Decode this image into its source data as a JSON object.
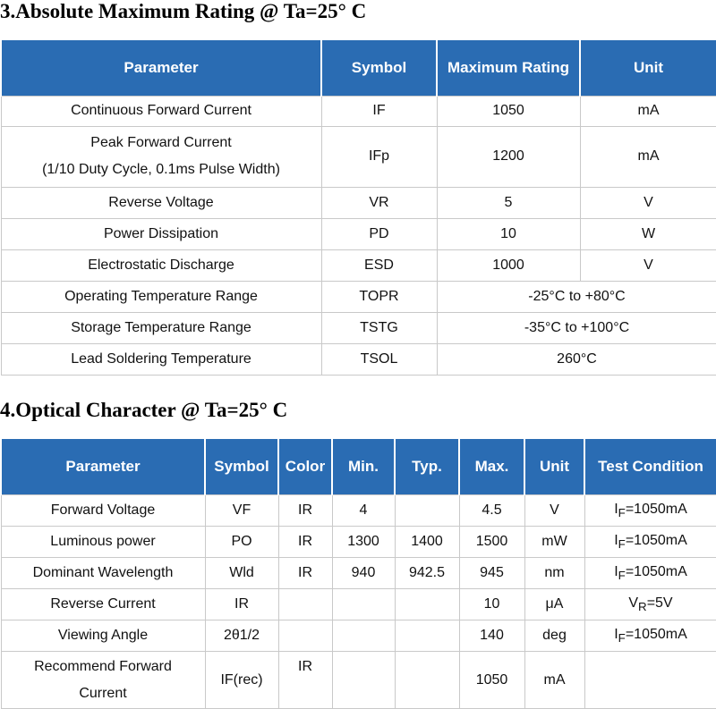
{
  "sections": [
    {
      "title": "3.Absolute Maximum Rating @ Ta=25° C",
      "header": [
        "Parameter",
        "Symbol",
        "Maximum Rating",
        "Unit"
      ],
      "rows": [
        [
          [
            "Continuous Forward Current"
          ],
          "IF",
          "1050",
          "mA"
        ],
        [
          [
            "Peak Forward Current",
            "(1/10 Duty Cycle, 0.1ms Pulse Width)"
          ],
          "IFp",
          "1200",
          "mA"
        ],
        [
          [
            "Reverse Voltage"
          ],
          "VR",
          "5",
          "V"
        ],
        [
          [
            "Power Dissipation"
          ],
          "PD",
          "10",
          "W"
        ],
        [
          [
            "Electrostatic Discharge"
          ],
          "ESD",
          "1000",
          "V"
        ],
        [
          [
            "Operating Temperature Range"
          ],
          "TOPR",
          "-25°C to +80°C"
        ],
        [
          [
            "Storage Temperature Range"
          ],
          "TSTG",
          "-35°C to +100°C"
        ],
        [
          [
            "Lead Soldering Temperature"
          ],
          "TSOL",
          "260°C"
        ]
      ]
    },
    {
      "title": "4.Optical Character @ Ta=25° C",
      "header": [
        "Parameter",
        "Symbol",
        "Color",
        "Min.",
        "Typ.",
        "Max.",
        "Unit",
        "Test Condition"
      ],
      "rows": [
        [
          [
            "Forward Voltage"
          ],
          "VF",
          "IR",
          "4",
          null,
          "4.5",
          "V",
          {
            "parts": [
              "I",
              "F",
              "=1050mA"
            ]
          }
        ],
        [
          [
            "Luminous power"
          ],
          "PO",
          "IR",
          "1300",
          "1400",
          "1500",
          "mW",
          {
            "parts": [
              "I",
              "F",
              "=1050mA"
            ]
          }
        ],
        [
          [
            "Dominant Wavelength"
          ],
          "Wld",
          "IR",
          "940",
          "942.5",
          "945",
          "nm",
          {
            "parts": [
              "I",
              "F",
              "=1050mA"
            ]
          }
        ],
        [
          [
            "Reverse Current"
          ],
          "IR",
          null,
          null,
          null,
          "10",
          "μA",
          {
            "parts": [
              "V",
              "R",
              "=5V"
            ]
          }
        ],
        [
          [
            "Viewing Angle"
          ],
          "2θ1/2",
          null,
          null,
          null,
          "140",
          "deg",
          {
            "parts": [
              "I",
              "F",
              "=1050mA"
            ]
          }
        ],
        [
          [
            "Recommend Forward",
            "Current"
          ],
          "IF(rec)",
          "IR",
          null,
          null,
          "1050",
          "mA",
          null
        ]
      ]
    }
  ]
}
